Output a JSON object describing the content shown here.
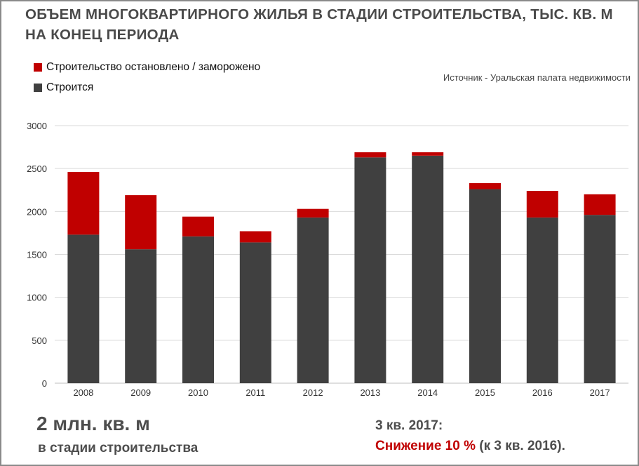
{
  "title": "ОБЪЕМ МНОГОКВАРТИРНОГО ЖИЛЬЯ В СТАДИИ СТРОИТЕЛЬСТВА, ТЫС. КВ. М НА КОНЕЦ ПЕРИОДА",
  "legend": {
    "stopped": "Строительство остановлено / заморожено",
    "building": "Строится"
  },
  "source": "Источник - Уральская палата недвижимости",
  "colors": {
    "stopped": "#c00000",
    "building": "#404040",
    "grid": "#d9d9d9",
    "text": "#4d4d4d"
  },
  "chart_data": {
    "type": "bar",
    "stacked": true,
    "categories": [
      "2008",
      "2009",
      "2010",
      "2011",
      "2012",
      "2013",
      "2014",
      "2015",
      "2016",
      "2017"
    ],
    "series": [
      {
        "name": "Строится",
        "values": [
          1730,
          1560,
          1710,
          1640,
          1930,
          2630,
          2650,
          2260,
          1930,
          1960
        ]
      },
      {
        "name": "Строительство остановлено / заморожено",
        "values": [
          730,
          630,
          230,
          130,
          100,
          60,
          40,
          70,
          310,
          240
        ]
      }
    ],
    "ylim": [
      0,
      3000
    ],
    "yticks": [
      0,
      500,
      1000,
      1500,
      2000,
      2500,
      3000
    ],
    "grid": true,
    "legend_position": "top-left"
  },
  "footer": {
    "headline": "2 млн. кв. м",
    "subline": "в стадии строительства",
    "period": "3 кв. 2017:",
    "change_label": "Снижение 10 %",
    "change_note": "(к 3 кв. 2016)."
  }
}
